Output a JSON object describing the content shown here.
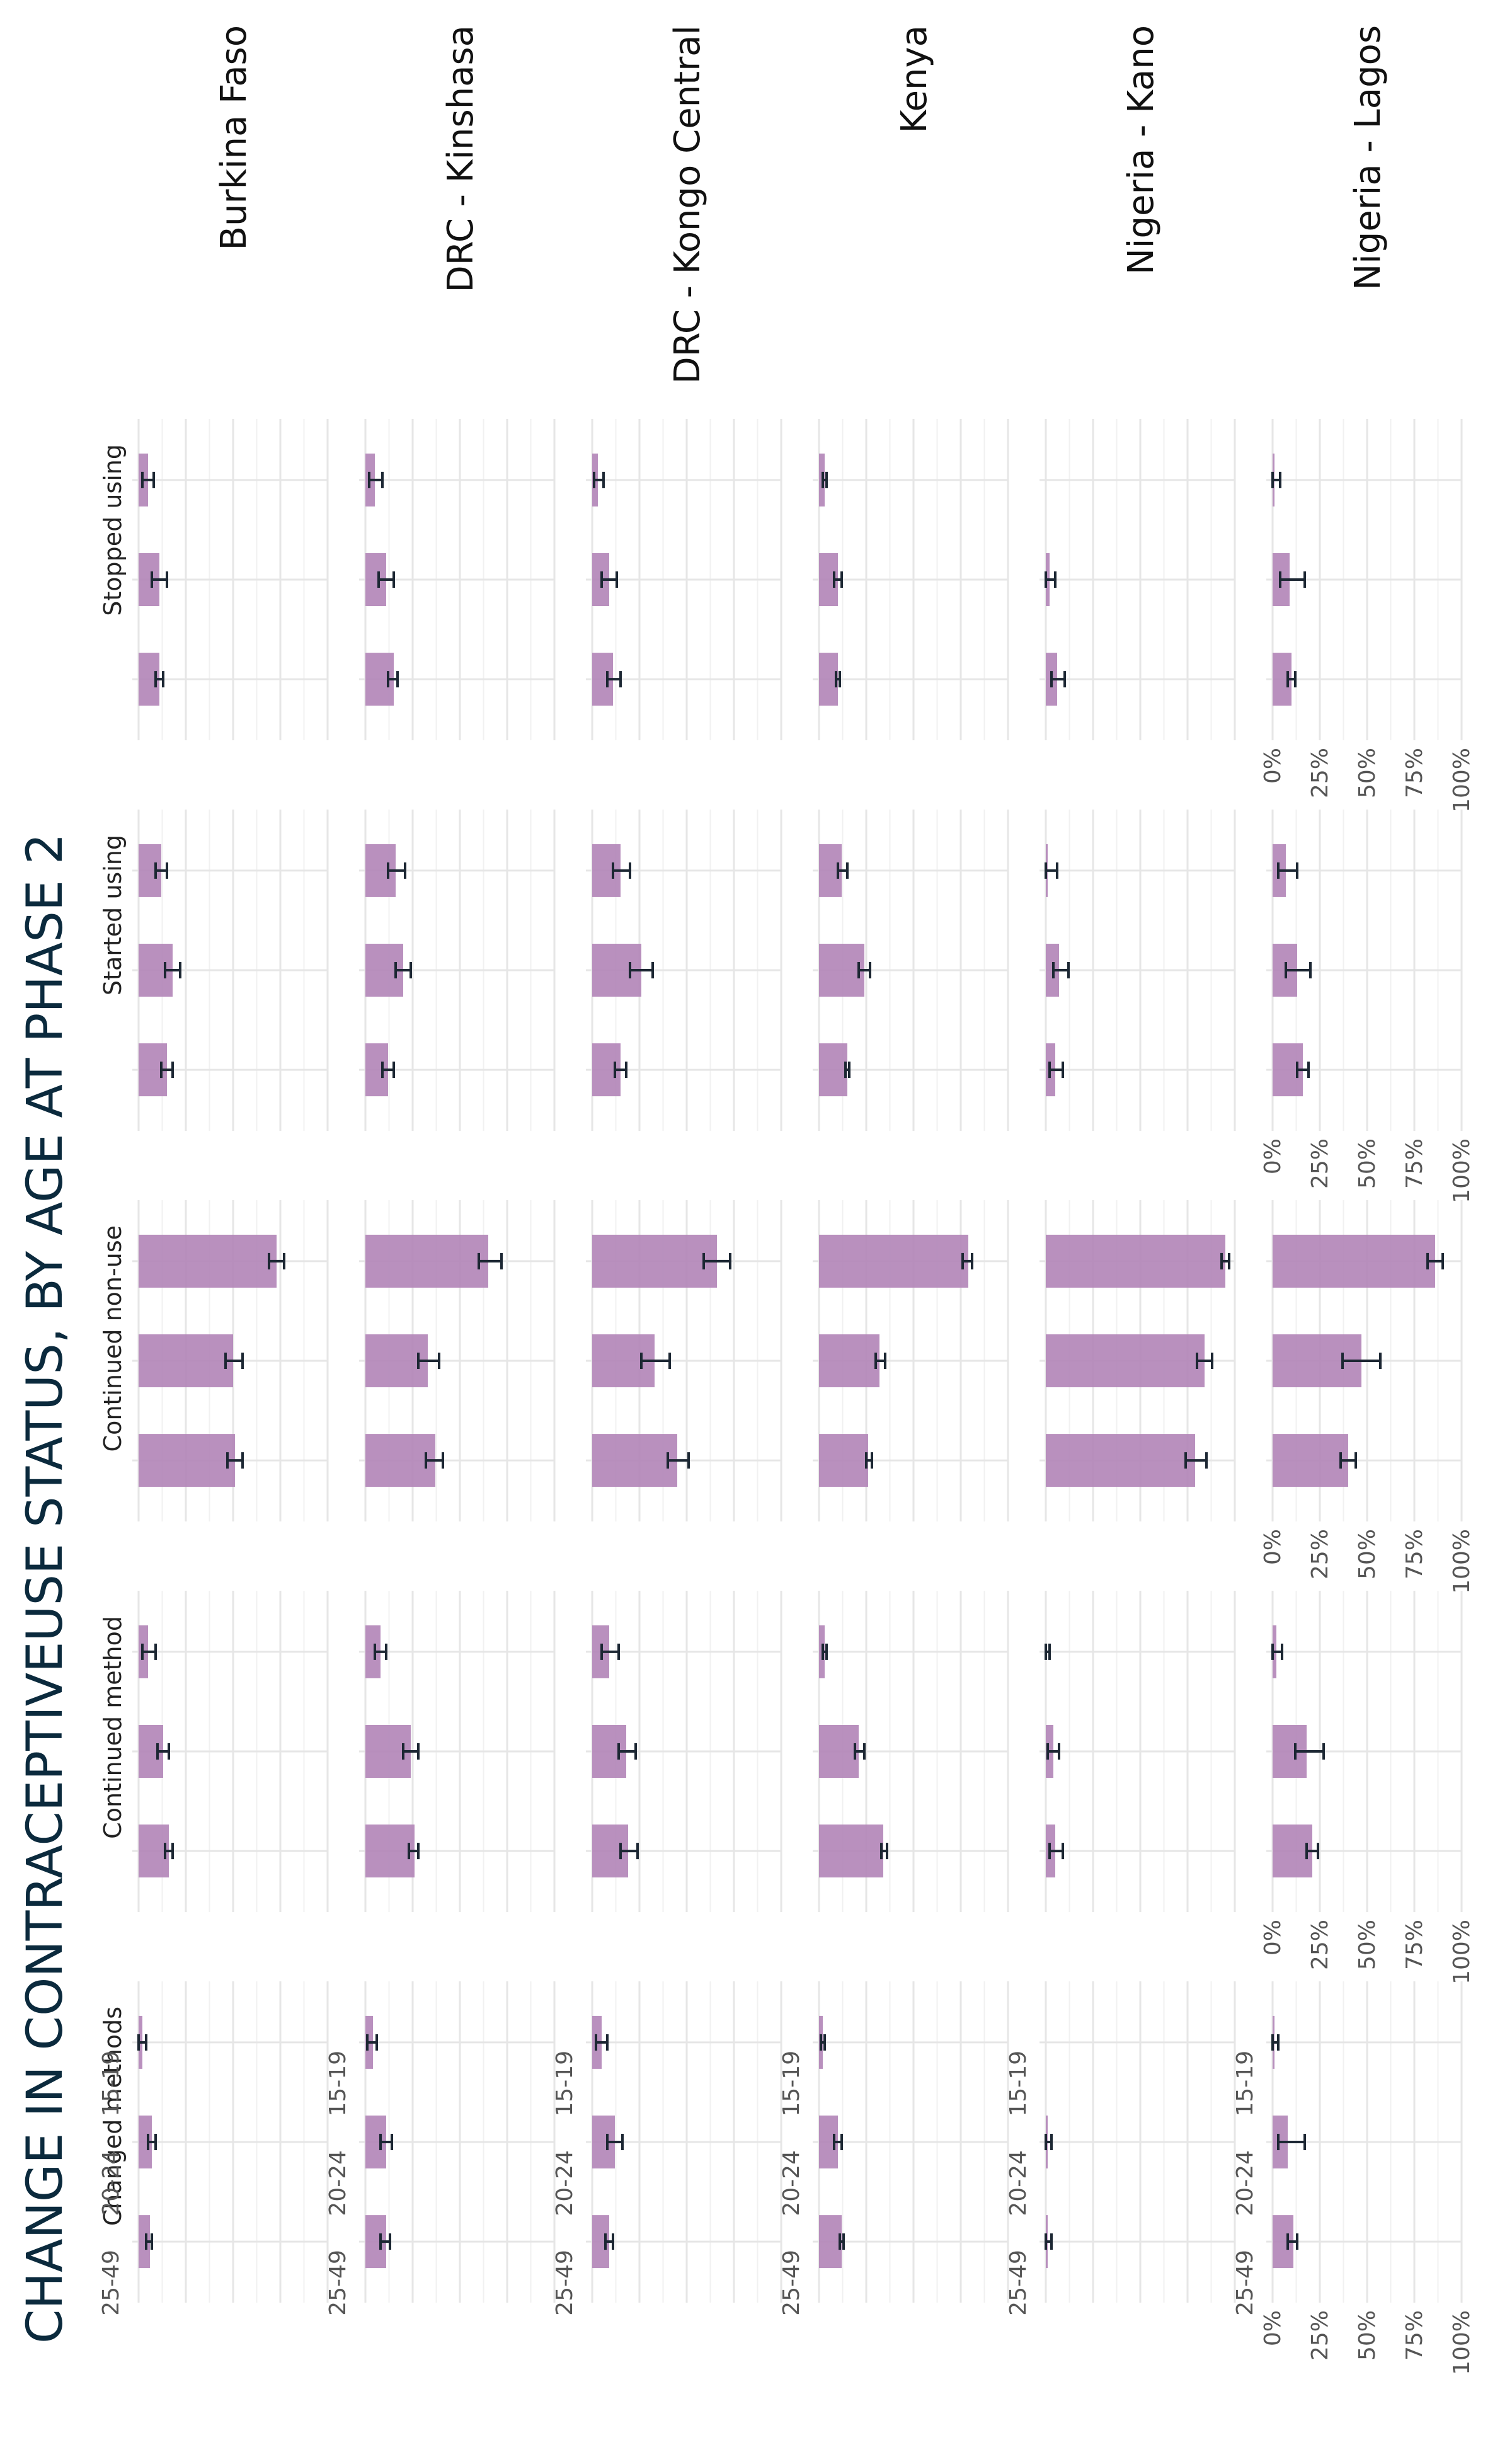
{
  "chart_data": {
    "type": "bar",
    "title": "CHANGE IN CONTRACEPTIVEUSE STATUS, BY AGE AT PHASE 2",
    "colors": {
      "bar": "#b387b8",
      "error_bar": "#1c2733",
      "title": "#0b2a3d"
    },
    "countries": [
      "Burkina Faso",
      "DRC - Kinshasa",
      "DRC - Kongo Central",
      "Kenya",
      "Nigeria - Kano",
      "Nigeria - Lagos"
    ],
    "statuses": [
      "Stopped using",
      "Started using",
      "Continued non-use",
      "Continued method",
      "Changed methods"
    ],
    "categories": [
      "15-19",
      "20-24",
      "25-49"
    ],
    "y_ticks": [
      "0%",
      "25%",
      "50%",
      "75%",
      "100%"
    ],
    "ylim": [
      0,
      100
    ],
    "grid": true,
    "series": [
      {
        "country": "Burkina Faso",
        "status": "Stopped using",
        "values": [
          5,
          11,
          11
        ],
        "lower": [
          2,
          7,
          9
        ],
        "upper": [
          8,
          15,
          13
        ]
      },
      {
        "country": "Burkina Faso",
        "status": "Started using",
        "values": [
          12,
          18,
          15
        ],
        "lower": [
          9,
          14,
          12
        ],
        "upper": [
          15,
          22,
          18
        ]
      },
      {
        "country": "Burkina Faso",
        "status": "Continued non-use",
        "values": [
          73,
          50,
          51
        ],
        "lower": [
          69,
          46,
          47
        ],
        "upper": [
          77,
          55,
          55
        ]
      },
      {
        "country": "Burkina Faso",
        "status": "Continued method",
        "values": [
          5,
          13,
          16
        ],
        "lower": [
          2,
          10,
          14
        ],
        "upper": [
          9,
          16,
          18
        ]
      },
      {
        "country": "Burkina Faso",
        "status": "Changed methods",
        "values": [
          2,
          7,
          6
        ],
        "lower": [
          0,
          5,
          4
        ],
        "upper": [
          4,
          9,
          7
        ]
      },
      {
        "country": "DRC - Kinshasa",
        "status": "Stopped using",
        "values": [
          5,
          11,
          15
        ],
        "lower": [
          2,
          7,
          12
        ],
        "upper": [
          9,
          15,
          17
        ]
      },
      {
        "country": "DRC - Kinshasa",
        "status": "Started using",
        "values": [
          16,
          20,
          12
        ],
        "lower": [
          12,
          16,
          9
        ],
        "upper": [
          21,
          24,
          15
        ]
      },
      {
        "country": "DRC - Kinshasa",
        "status": "Continued non-use",
        "values": [
          65,
          33,
          37
        ],
        "lower": [
          60,
          28,
          32
        ],
        "upper": [
          72,
          39,
          41
        ]
      },
      {
        "country": "DRC - Kinshasa",
        "status": "Continued method",
        "values": [
          8,
          24,
          26
        ],
        "lower": [
          5,
          20,
          23
        ],
        "upper": [
          11,
          28,
          28
        ]
      },
      {
        "country": "DRC - Kinshasa",
        "status": "Changed methods",
        "values": [
          4,
          11,
          11
        ],
        "lower": [
          1,
          8,
          8
        ],
        "upper": [
          6,
          14,
          13
        ]
      },
      {
        "country": "DRC - Kongo Central",
        "status": "Stopped using",
        "values": [
          3,
          9,
          11
        ],
        "lower": [
          1,
          5,
          8
        ],
        "upper": [
          6,
          13,
          15
        ]
      },
      {
        "country": "DRC - Kongo Central",
        "status": "Started using",
        "values": [
          15,
          26,
          15
        ],
        "lower": [
          11,
          20,
          12
        ],
        "upper": [
          20,
          32,
          18
        ]
      },
      {
        "country": "DRC - Kongo Central",
        "status": "Continued non-use",
        "values": [
          66,
          33,
          45
        ],
        "lower": [
          59,
          26,
          40
        ],
        "upper": [
          73,
          41,
          51
        ]
      },
      {
        "country": "DRC - Kongo Central",
        "status": "Continued method",
        "values": [
          9,
          18,
          19
        ],
        "lower": [
          5,
          14,
          15
        ],
        "upper": [
          14,
          23,
          24
        ]
      },
      {
        "country": "DRC - Kongo Central",
        "status": "Changed methods",
        "values": [
          5,
          12,
          9
        ],
        "lower": [
          2,
          8,
          7
        ],
        "upper": [
          8,
          16,
          11
        ]
      },
      {
        "country": "Kenya",
        "status": "Stopped using",
        "values": [
          3,
          10,
          10
        ],
        "lower": [
          2,
          8,
          9
        ],
        "upper": [
          4,
          12,
          11
        ]
      },
      {
        "country": "Kenya",
        "status": "Started using",
        "values": [
          12,
          24,
          15
        ],
        "lower": [
          10,
          21,
          14
        ],
        "upper": [
          15,
          27,
          16
        ]
      },
      {
        "country": "Kenya",
        "status": "Continued non-use",
        "values": [
          79,
          32,
          26
        ],
        "lower": [
          76,
          30,
          25
        ],
        "upper": [
          81,
          35,
          28
        ]
      },
      {
        "country": "Kenya",
        "status": "Continued method",
        "values": [
          3,
          21,
          34
        ],
        "lower": [
          2,
          19,
          33
        ],
        "upper": [
          4,
          24,
          36
        ]
      },
      {
        "country": "Kenya",
        "status": "Changed methods",
        "values": [
          2,
          10,
          12
        ],
        "lower": [
          1,
          8,
          11
        ],
        "upper": [
          3,
          12,
          13
        ]
      },
      {
        "country": "Nigeria - Kano",
        "status": "Stopped using",
        "values": [
          0,
          2,
          6
        ],
        "lower": [
          0,
          0,
          3
        ],
        "upper": [
          0,
          5,
          10
        ]
      },
      {
        "country": "Nigeria - Kano",
        "status": "Started using",
        "values": [
          1,
          7,
          5
        ],
        "lower": [
          0,
          4,
          2
        ],
        "upper": [
          6,
          12,
          9
        ]
      },
      {
        "country": "Nigeria - Kano",
        "status": "Continued non-use",
        "values": [
          95,
          84,
          79
        ],
        "lower": [
          93,
          80,
          74
        ],
        "upper": [
          97,
          88,
          85
        ]
      },
      {
        "country": "Nigeria - Kano",
        "status": "Continued method",
        "values": [
          0,
          4,
          5
        ],
        "lower": [
          0,
          1,
          2
        ],
        "upper": [
          2,
          7,
          9
        ]
      },
      {
        "country": "Nigeria - Kano",
        "status": "Changed methods",
        "values": [
          0,
          1,
          1
        ],
        "lower": [
          0,
          0,
          0
        ],
        "upper": [
          0,
          3,
          3
        ]
      },
      {
        "country": "Nigeria - Lagos",
        "status": "Stopped using",
        "values": [
          1,
          9,
          10
        ],
        "lower": [
          0,
          4,
          8
        ],
        "upper": [
          4,
          17,
          12
        ]
      },
      {
        "country": "Nigeria - Lagos",
        "status": "Started using",
        "values": [
          7,
          13,
          16
        ],
        "lower": [
          3,
          7,
          13
        ],
        "upper": [
          13,
          20,
          19
        ]
      },
      {
        "country": "Nigeria - Lagos",
        "status": "Continued non-use",
        "values": [
          86,
          47,
          40
        ],
        "lower": [
          82,
          37,
          36
        ],
        "upper": [
          90,
          57,
          44
        ]
      },
      {
        "country": "Nigeria - Lagos",
        "status": "Continued method",
        "values": [
          2,
          18,
          21
        ],
        "lower": [
          0,
          12,
          18
        ],
        "upper": [
          5,
          27,
          24
        ]
      },
      {
        "country": "Nigeria - Lagos",
        "status": "Changed methods",
        "values": [
          1,
          8,
          11
        ],
        "lower": [
          0,
          3,
          8
        ],
        "upper": [
          3,
          17,
          13
        ]
      }
    ]
  }
}
